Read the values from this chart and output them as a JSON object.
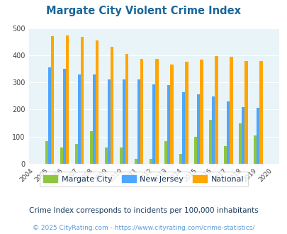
{
  "title": "Margate City Violent Crime Index",
  "years": [
    2004,
    2005,
    2006,
    2007,
    2008,
    2009,
    2010,
    2011,
    2012,
    2013,
    2014,
    2015,
    2016,
    2017,
    2018,
    2019,
    2020
  ],
  "margate_city": [
    null,
    83,
    60,
    73,
    120,
    60,
    60,
    18,
    18,
    83,
    37,
    98,
    163,
    65,
    150,
    105,
    null
  ],
  "new_jersey": [
    null,
    355,
    350,
    328,
    330,
    312,
    310,
    310,
    293,
    290,
    263,
    257,
    247,
    230,
    210,
    207,
    null
  ],
  "national": [
    null,
    469,
    473,
    467,
    455,
    432,
    405,
    387,
    387,
    367,
    377,
    383,
    398,
    394,
    379,
    379,
    null
  ],
  "bar_width": 0.2,
  "color_margate": "#8dc63f",
  "color_nj": "#4da6ff",
  "color_national": "#ffa500",
  "bg_color": "#e8f4f8",
  "ylim": [
    0,
    500
  ],
  "yticks": [
    0,
    100,
    200,
    300,
    400,
    500
  ],
  "footnote1": "Crime Index corresponds to incidents per 100,000 inhabitants",
  "footnote2": "© 2025 CityRating.com - https://www.cityrating.com/crime-statistics/",
  "legend_labels": [
    "Margate City",
    "New Jersey",
    "National"
  ],
  "title_color": "#1a6699",
  "footnote1_color": "#1a3a5c",
  "footnote2_color": "#5b9bd5"
}
